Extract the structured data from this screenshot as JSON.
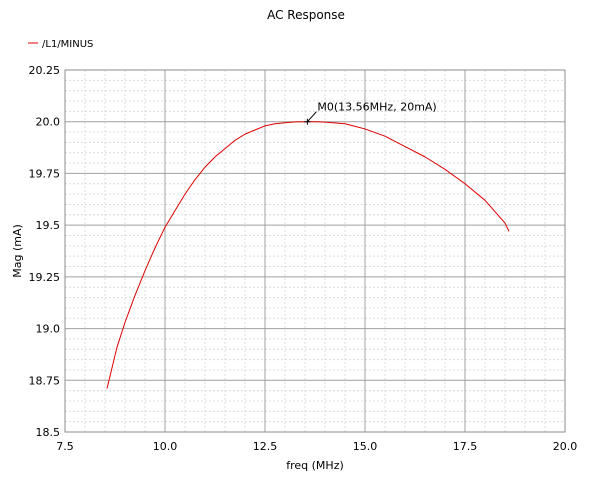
{
  "chart_data": {
    "type": "line",
    "title": "AC Response",
    "xlabel": "freq (MHz)",
    "ylabel": "Mag (mA)",
    "xlim": [
      7.5,
      20.0
    ],
    "ylim": [
      18.5,
      20.25
    ],
    "x_ticks": [
      "7.5",
      "10.0",
      "12.5",
      "15.0",
      "17.5",
      "20.0"
    ],
    "y_ticks": [
      "18.5",
      "18.75",
      "19.0",
      "19.25",
      "19.5",
      "19.75",
      "20.0",
      "20.25"
    ],
    "grid": true,
    "legend_position": "top-left",
    "series": [
      {
        "name": "/L1/MINUS",
        "color": "#dd0000",
        "x": [
          8.55,
          8.8,
          9.0,
          9.25,
          9.5,
          9.75,
          10.0,
          10.25,
          10.5,
          10.75,
          11.0,
          11.25,
          11.5,
          11.75,
          12.0,
          12.25,
          12.5,
          12.75,
          13.0,
          13.25,
          13.56,
          13.8,
          14.0,
          14.5,
          15.0,
          15.5,
          16.0,
          16.5,
          17.0,
          17.5,
          18.0,
          18.5,
          18.6
        ],
        "y": [
          18.71,
          18.91,
          19.03,
          19.16,
          19.28,
          19.39,
          19.49,
          19.57,
          19.65,
          19.72,
          19.78,
          19.83,
          19.87,
          19.91,
          19.94,
          19.96,
          19.98,
          19.99,
          19.995,
          19.999,
          20.0,
          20.0,
          19.998,
          19.99,
          19.965,
          19.93,
          19.88,
          19.83,
          19.77,
          19.7,
          19.62,
          19.51,
          19.47
        ]
      }
    ],
    "markers": [
      {
        "label": "M0(13.56MHz, 20mA)",
        "x": 13.56,
        "y": 20.0
      }
    ]
  }
}
